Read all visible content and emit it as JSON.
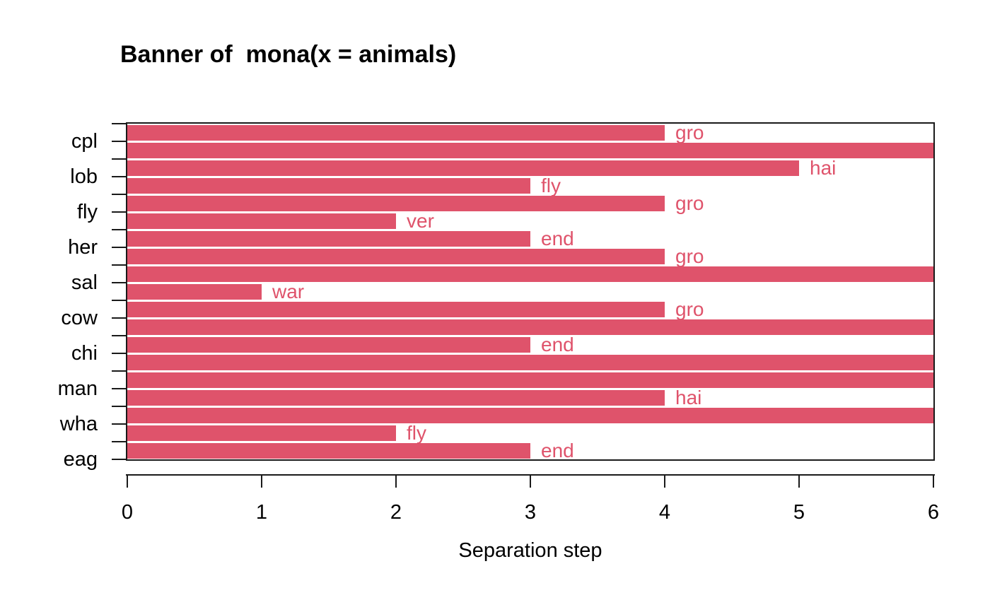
{
  "chart_data": {
    "type": "bar",
    "variant": "mona-banner-horizontal",
    "title": "Banner of  mona(x = animals)",
    "xlabel": "Separation step",
    "xlim": [
      0,
      6
    ],
    "x_ticks": [
      "0",
      "1",
      "2",
      "3",
      "4",
      "5",
      "6"
    ],
    "y_tick_labels": [
      "cpl",
      "lob",
      "fly",
      "her",
      "sal",
      "cow",
      "chi",
      "man",
      "wha",
      "eag"
    ],
    "y_label_every": 2,
    "grid": false,
    "legend": "none",
    "bars": [
      {
        "step": 4,
        "label": "gro"
      },
      {
        "step": 6,
        "label": ""
      },
      {
        "step": 5,
        "label": "hai"
      },
      {
        "step": 3,
        "label": "fly"
      },
      {
        "step": 4,
        "label": "gro"
      },
      {
        "step": 2,
        "label": "ver"
      },
      {
        "step": 3,
        "label": "end"
      },
      {
        "step": 4,
        "label": "gro"
      },
      {
        "step": 6,
        "label": ""
      },
      {
        "step": 1,
        "label": "war"
      },
      {
        "step": 4,
        "label": "gro"
      },
      {
        "step": 6,
        "label": ""
      },
      {
        "step": 3,
        "label": "end"
      },
      {
        "step": 6,
        "label": ""
      },
      {
        "step": 6,
        "label": ""
      },
      {
        "step": 4,
        "label": "hai"
      },
      {
        "step": 6,
        "label": ""
      },
      {
        "step": 2,
        "label": "fly"
      },
      {
        "step": 3,
        "label": "end"
      }
    ],
    "colors": {
      "bar": "#DF536B",
      "bar_label": "#DF536B",
      "axis": "#1a1a1a",
      "text": "#000000",
      "background": "#FFFFFF"
    }
  }
}
